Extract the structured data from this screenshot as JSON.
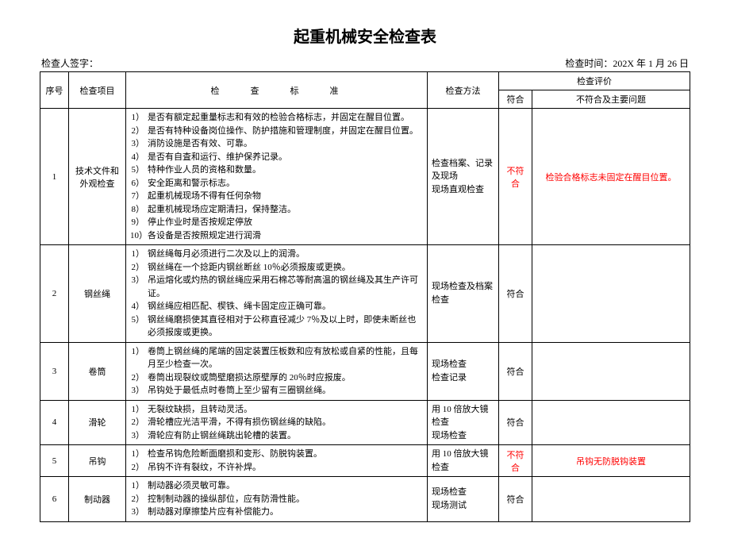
{
  "title": "起重机械安全检查表",
  "meta": {
    "signer_label": "检查人签字：",
    "time_label": "检查时间：",
    "time_value": "202X 年 1 月 26 日"
  },
  "headers": {
    "seq": "序号",
    "item": "检查项目",
    "standard": "检　查　标　准",
    "method": "检查方法",
    "evaluation": "检查评价",
    "conform": "符合",
    "issue": "不符合及主要问题"
  },
  "rows": [
    {
      "seq": "1",
      "item": "技术文件和外观检查",
      "standards": [
        [
          "1）",
          "是否有额定起重量标志和有效的检验合格标志，并固定在醒目位置。"
        ],
        [
          "2）",
          "是否有特种设备岗位操作、防护措施和管理制度，并固定在醒目位置。"
        ],
        [
          "3）",
          "消防设施是否有效、可靠。"
        ],
        [
          "4）",
          "是否有自査和运行、维护保养记录。"
        ],
        [
          "5）",
          "特种作业人员的资格和数量。"
        ],
        [
          "6）",
          "安全距离和警示标志。"
        ],
        [
          "7）",
          "起重机械现场不得有任何杂物"
        ],
        [
          "8）",
          "起重机械现场应定期清扫，保持整洁。"
        ],
        [
          "9）",
          "停止作业时是否按规定停放"
        ],
        [
          "10）",
          "各设备是否按照规定进行润滑"
        ]
      ],
      "method": "检查档案、记录及现场\n现场直观检查",
      "conform": "不符合",
      "conform_red": true,
      "issue": "检验合格标志未固定在醒目位置。",
      "issue_red": true
    },
    {
      "seq": "2",
      "item": "钢丝绳",
      "standards": [
        [
          "1）",
          "钢丝绳每月必须进行二次及以上的润滑。"
        ],
        [
          "2）",
          "钢丝绳在一个捻距内钢丝断丝 10％必须报废或更换。"
        ],
        [
          "3）",
          "吊运熔化或灼热的钢丝绳应采用石棉芯等耐高温的钢丝绳及其生产许可证。"
        ],
        [
          "4）",
          "钢丝绳应相匹配、楔铁、绳卡固定应正确可靠。"
        ],
        [
          "5）",
          "钢丝绳磨损使其直径相对于公称直径减少 7％及以上时，即使未断丝也必须报废或更换。"
        ]
      ],
      "method": "现场检查及档案检查",
      "conform": "符合",
      "conform_red": false,
      "issue": "",
      "issue_red": false
    },
    {
      "seq": "3",
      "item": "卷筒",
      "standards": [
        [
          "1）",
          "卷筒上钢丝绳的尾端的固定装置压板数和应有放松或自紧的性能，且每月至少检查一次。"
        ],
        [
          "2）",
          "卷筒出现裂纹或筒壁磨损达原壁厚的 20％时应报废。"
        ],
        [
          "3）",
          "吊钩处于最低点时卷筒上至少留有三圈钢丝绳。"
        ]
      ],
      "method": "现场检查\n检查记录",
      "conform": "符合",
      "conform_red": false,
      "issue": "",
      "issue_red": false
    },
    {
      "seq": "4",
      "item": "滑轮",
      "standards": [
        [
          "1）",
          "无裂纹缺损，且转动灵活。"
        ],
        [
          "2）",
          "滑轮槽应光洁平滑，不得有损伤钢丝绳的缺陷。"
        ],
        [
          "3）",
          "滑轮应有防止钢丝绳跳出轮槽的装置。"
        ]
      ],
      "method": "用 10 倍放大镜检查\n现场检查",
      "conform": "符合",
      "conform_red": false,
      "issue": "",
      "issue_red": false
    },
    {
      "seq": "5",
      "item": "吊钩",
      "standards": [
        [
          "1）",
          "检查吊钩危险断面磨损和变形、防脱钩装置。"
        ],
        [
          "2）",
          "吊钩不许有裂纹，不许补焊。"
        ]
      ],
      "method": "用 10 倍放大镜检查",
      "conform": "不符合",
      "conform_red": true,
      "issue": "吊钩无防脱钩装置",
      "issue_red": true
    },
    {
      "seq": "6",
      "item": "制动器",
      "standards": [
        [
          "1）",
          "制动器必须灵敏可靠。"
        ],
        [
          "2）",
          "控制制动器的操纵部位，应有防滑性能。"
        ],
        [
          "3）",
          "制动器对摩擦垫片应有补偿能力。"
        ]
      ],
      "method": "现场检查\n现场测试",
      "conform": "符合",
      "conform_red": false,
      "issue": "",
      "issue_red": false
    }
  ]
}
